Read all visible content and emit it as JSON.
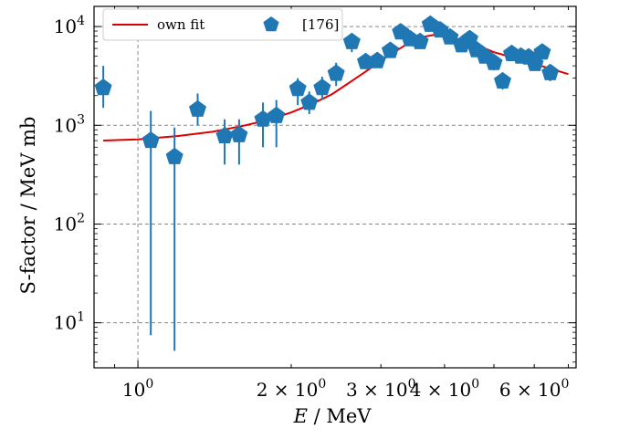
{
  "chart_data": {
    "type": "scatter",
    "x_scale": "log",
    "y_scale": "log",
    "xlim": [
      0.82,
      7.25
    ],
    "ylim": [
      3.5,
      16000
    ],
    "grid": true,
    "legend_position": "top-left",
    "xlabel_var": "E",
    "xlabel_unit": " / MeV",
    "ylabel": "S-factor / MeV mb",
    "x_tick_labels": [
      {
        "x": 1,
        "base": "10",
        "exp": "0",
        "mant": ""
      },
      {
        "x": 2,
        "base": "10",
        "exp": "0",
        "mant": "2 × "
      },
      {
        "x": 3,
        "base": "10",
        "exp": "0",
        "mant": "3 × "
      },
      {
        "x": 4,
        "base": "10",
        "exp": "0",
        "mant": "4 × "
      },
      {
        "x": 6,
        "base": "10",
        "exp": "0",
        "mant": "6 × "
      }
    ],
    "y_tick_labels": [
      {
        "y": 10,
        "base": "10",
        "exp": "1"
      },
      {
        "y": 100,
        "base": "10",
        "exp": "2"
      },
      {
        "y": 1000,
        "base": "10",
        "exp": "3"
      },
      {
        "y": 10000,
        "base": "10",
        "exp": "4"
      }
    ],
    "series": [
      {
        "name": "own fit",
        "kind": "line",
        "color": "#dd0000",
        "x": [
          0.855,
          1.0,
          1.2,
          1.4,
          1.6,
          1.8,
          2.0,
          2.2,
          2.4,
          2.6,
          2.8,
          3.0,
          3.2,
          3.4,
          3.6,
          3.8,
          4.0,
          4.2,
          4.4,
          4.6,
          4.8,
          5.0,
          5.5,
          6.0,
          6.5,
          7.0
        ],
        "y": [
          700,
          720,
          780,
          860,
          980,
          1130,
          1350,
          1650,
          2050,
          2700,
          3500,
          4500,
          5600,
          6800,
          7800,
          8200,
          8100,
          7600,
          7000,
          6500,
          6000,
          5500,
          4800,
          4200,
          3700,
          3300
        ]
      },
      {
        "name": "[176]",
        "kind": "scatter",
        "color": "#1f77b4",
        "points": [
          {
            "x": 0.855,
            "y": 2400,
            "lo": 1500,
            "hi": 4000
          },
          {
            "x": 1.06,
            "y": 700,
            "lo": 7.5,
            "hi": 1400
          },
          {
            "x": 1.18,
            "y": 480,
            "lo": 5.2,
            "hi": 950
          },
          {
            "x": 1.31,
            "y": 1450,
            "lo": 1000,
            "hi": 2100
          },
          {
            "x": 1.48,
            "y": 780,
            "lo": 400,
            "hi": 1150
          },
          {
            "x": 1.58,
            "y": 800,
            "lo": 400,
            "hi": 1150
          },
          {
            "x": 1.76,
            "y": 1150,
            "lo": 600,
            "hi": 1700
          },
          {
            "x": 1.87,
            "y": 1250,
            "lo": 600,
            "hi": 1800
          },
          {
            "x": 2.06,
            "y": 2350,
            "lo": 1600,
            "hi": 3000
          },
          {
            "x": 2.17,
            "y": 1700,
            "lo": 1300,
            "hi": 2200
          },
          {
            "x": 2.3,
            "y": 2400,
            "lo": 1800,
            "hi": 3100
          },
          {
            "x": 2.45,
            "y": 3350,
            "lo": 2500,
            "hi": 4300
          },
          {
            "x": 2.63,
            "y": 7000,
            "lo": 5500,
            "hi": 8500
          },
          {
            "x": 2.8,
            "y": 4400,
            "lo": 3700,
            "hi": 5200
          },
          {
            "x": 2.95,
            "y": 4500,
            "lo": 3800,
            "hi": 5300
          },
          {
            "x": 3.13,
            "y": 5700,
            "lo": 4800,
            "hi": 6700
          },
          {
            "x": 3.28,
            "y": 8800,
            "lo": 7800,
            "hi": 9800
          },
          {
            "x": 3.42,
            "y": 7500,
            "lo": 6500,
            "hi": 8500
          },
          {
            "x": 3.58,
            "y": 7000,
            "lo": 6000,
            "hi": 8000
          },
          {
            "x": 3.75,
            "y": 10500,
            "lo": 9500,
            "hi": 11500
          },
          {
            "x": 3.92,
            "y": 9200,
            "lo": 8200,
            "hi": 10200
          },
          {
            "x": 4.1,
            "y": 7800,
            "lo": 6800,
            "hi": 8800
          },
          {
            "x": 4.32,
            "y": 6500,
            "lo": 5700,
            "hi": 7300
          },
          {
            "x": 4.48,
            "y": 7500,
            "lo": 6600,
            "hi": 8400
          },
          {
            "x": 4.62,
            "y": 5800,
            "lo": 5000,
            "hi": 6600
          },
          {
            "x": 4.8,
            "y": 5000,
            "lo": 4300,
            "hi": 5700
          },
          {
            "x": 5.0,
            "y": 4300,
            "lo": 3600,
            "hi": 5000
          },
          {
            "x": 5.2,
            "y": 2800,
            "lo": 2300,
            "hi": 3300
          },
          {
            "x": 5.42,
            "y": 5300,
            "lo": 4600,
            "hi": 6000
          },
          {
            "x": 5.65,
            "y": 5000,
            "lo": 4300,
            "hi": 5700
          },
          {
            "x": 5.85,
            "y": 4900,
            "lo": 4200,
            "hi": 5600
          },
          {
            "x": 6.02,
            "y": 4200,
            "lo": 3600,
            "hi": 4800
          },
          {
            "x": 6.22,
            "y": 5500,
            "lo": 4800,
            "hi": 6200
          },
          {
            "x": 6.45,
            "y": 3400,
            "lo": 2800,
            "hi": 4000
          }
        ]
      }
    ]
  }
}
